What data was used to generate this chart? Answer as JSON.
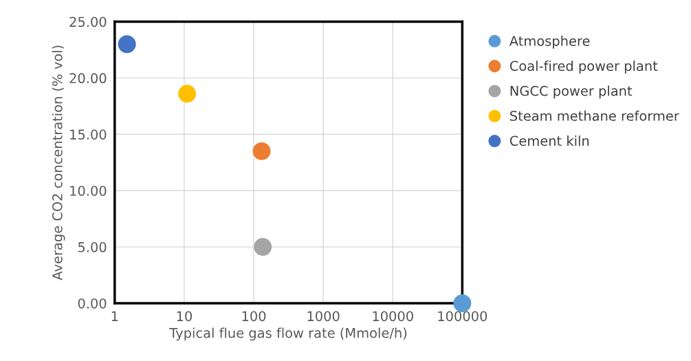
{
  "chart_data": {
    "type": "scatter",
    "xlabel": "Typical flue gas flow rate (Mmole/h)",
    "ylabel": "Average CO2 concentration (% vol)",
    "log": "x",
    "grid": true,
    "legend": "right",
    "marker": "circle",
    "xlim": [
      1,
      100000
    ],
    "xticks": [
      1,
      10,
      100,
      1000,
      10000,
      100000
    ],
    "ylim": [
      0,
      25
    ],
    "yticks": [
      {
        "value": 0,
        "label": "0.00"
      },
      {
        "value": 5,
        "label": "5.00"
      },
      {
        "value": 10,
        "label": "10.00"
      },
      {
        "value": 15,
        "label": "15.00"
      },
      {
        "value": 20,
        "label": "20.00"
      },
      {
        "value": 25,
        "label": "25.00"
      }
    ],
    "series": [
      {
        "name": "Atmosphere",
        "color": "#5b9bd5",
        "x": [
          100000
        ],
        "values": [
          0
        ]
      },
      {
        "name": "Coal-fired power plant",
        "color": "#ed7d31",
        "x": [
          130
        ],
        "values": [
          13.5
        ]
      },
      {
        "name": "NGCC power plant",
        "color": "#a5a5a5",
        "x": [
          135
        ],
        "values": [
          5
        ]
      },
      {
        "name": "Steam methane reformer",
        "color": "#ffc000",
        "x": [
          11
        ],
        "values": [
          18.6
        ]
      },
      {
        "name": "Cement kiln",
        "color": "#4472c4",
        "x": [
          1.5
        ],
        "values": [
          23
        ]
      }
    ]
  }
}
